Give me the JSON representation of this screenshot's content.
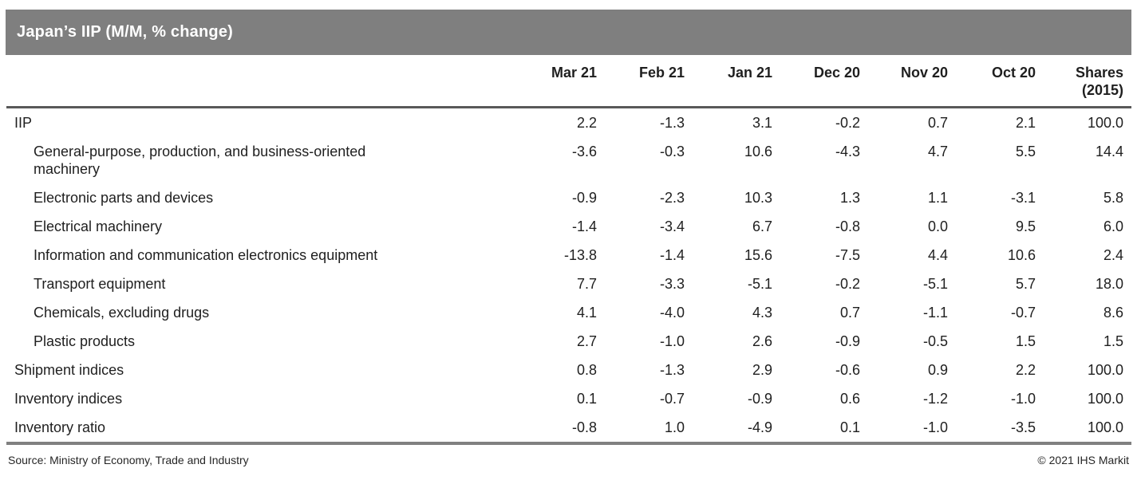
{
  "title_bar": {
    "title": "Japan’s IIP (M/M, % change)"
  },
  "chart_data": {
    "type": "table",
    "title": "Japan’s IIP (M/M, % change)",
    "columns": [
      "Mar 21",
      "Feb 21",
      "Jan 21",
      "Dec 20",
      "Nov 20",
      "Oct 20",
      "Shares\n(2015)"
    ],
    "rows": [
      {
        "label": "IIP",
        "indent": 0,
        "values": [
          2.2,
          -1.3,
          3.1,
          -0.2,
          0.7,
          2.1,
          100.0
        ]
      },
      {
        "label": "General-purpose, production, and business-oriented\nmachinery",
        "indent": 1,
        "values": [
          -3.6,
          -0.3,
          10.6,
          -4.3,
          4.7,
          5.5,
          14.4
        ]
      },
      {
        "label": "Electronic parts and devices",
        "indent": 1,
        "values": [
          -0.9,
          -2.3,
          10.3,
          1.3,
          1.1,
          -3.1,
          5.8
        ]
      },
      {
        "label": "Electrical machinery",
        "indent": 1,
        "values": [
          -1.4,
          -3.4,
          6.7,
          -0.8,
          0.0,
          9.5,
          6.0
        ]
      },
      {
        "label": "Information and communication electronics equipment",
        "indent": 1,
        "values": [
          -13.8,
          -1.4,
          15.6,
          -7.5,
          4.4,
          10.6,
          2.4
        ]
      },
      {
        "label": "Transport equipment",
        "indent": 1,
        "values": [
          7.7,
          -3.3,
          -5.1,
          -0.2,
          -5.1,
          5.7,
          18.0
        ]
      },
      {
        "label": "Chemicals, excluding drugs",
        "indent": 1,
        "values": [
          4.1,
          -4.0,
          4.3,
          0.7,
          -1.1,
          -0.7,
          8.6
        ]
      },
      {
        "label": "Plastic products",
        "indent": 1,
        "values": [
          2.7,
          -1.0,
          2.6,
          -0.9,
          -0.5,
          1.5,
          1.5
        ]
      },
      {
        "label": "Shipment indices",
        "indent": 0,
        "values": [
          0.8,
          -1.3,
          2.9,
          -0.6,
          0.9,
          2.2,
          100.0
        ]
      },
      {
        "label": "Inventory indices",
        "indent": 0,
        "values": [
          0.1,
          -0.7,
          -0.9,
          0.6,
          -1.2,
          -1.0,
          100.0
        ]
      },
      {
        "label": "Inventory ratio",
        "indent": 0,
        "values": [
          -0.8,
          1.0,
          -4.9,
          0.1,
          -1.0,
          -3.5,
          100.0
        ]
      }
    ],
    "value_decimals": 1,
    "layout": {
      "grid": "off",
      "header_rule": true,
      "bottom_rule": true
    }
  },
  "footer": {
    "source": "Source: Ministry of Economy, Trade and Industry",
    "copyright": "© 2021 IHS Markit"
  },
  "colors": {
    "title_bar": "#7f7f7f",
    "title_text": "#ffffff",
    "text": "#1f1f1f",
    "header_rule": "#595959",
    "bottom_rule": "#808080"
  }
}
